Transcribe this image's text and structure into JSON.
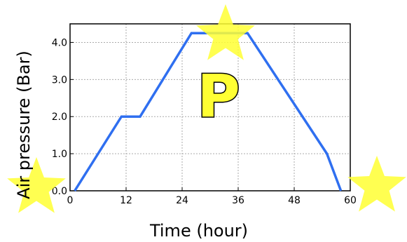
{
  "chart_data": {
    "type": "line",
    "xlabel": "Time (hour)",
    "ylabel": "Air pressure (Bar)",
    "xlim": [
      0,
      60
    ],
    "ylim": [
      0,
      4.5
    ],
    "x_ticks": [
      0,
      12,
      24,
      36,
      48,
      60
    ],
    "x_tick_labels": [
      "0",
      "12",
      "24",
      "36",
      "48",
      "60"
    ],
    "y_ticks": [
      0,
      1,
      2,
      3,
      4
    ],
    "y_tick_labels": [
      "0.0",
      "1.0",
      "2.0",
      "3.0",
      "4.0"
    ],
    "grid": true,
    "series": [
      {
        "color": "#2f6ff0",
        "x": [
          1,
          11,
          15,
          26,
          38,
          55,
          58
        ],
        "y": [
          0,
          2,
          2,
          4.25,
          4.25,
          1,
          0
        ]
      }
    ],
    "annotation_letter": "P"
  }
}
